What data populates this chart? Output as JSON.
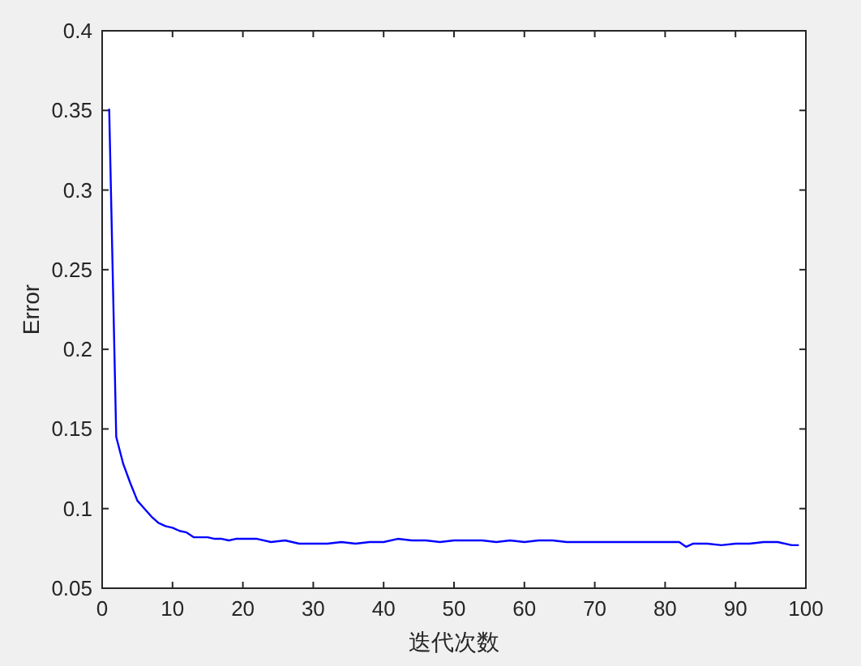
{
  "chart_data": {
    "type": "line",
    "xlabel": "迭代次数",
    "ylabel": "Error",
    "x": [
      1,
      2,
      3,
      4,
      5,
      6,
      7,
      8,
      9,
      10,
      11,
      12,
      13,
      14,
      15,
      16,
      17,
      18,
      19,
      20,
      22,
      24,
      26,
      28,
      30,
      32,
      34,
      36,
      38,
      40,
      42,
      44,
      46,
      48,
      50,
      52,
      54,
      56,
      58,
      60,
      62,
      64,
      66,
      68,
      70,
      72,
      74,
      76,
      78,
      80,
      82,
      83,
      84,
      86,
      88,
      90,
      92,
      94,
      96,
      98,
      99
    ],
    "series": [
      {
        "color": "#0000ff",
        "values": [
          0.351,
          0.145,
          0.128,
          0.116,
          0.105,
          0.1,
          0.095,
          0.091,
          0.089,
          0.088,
          0.086,
          0.085,
          0.082,
          0.082,
          0.082,
          0.081,
          0.081,
          0.08,
          0.081,
          0.081,
          0.081,
          0.079,
          0.08,
          0.078,
          0.078,
          0.078,
          0.079,
          0.078,
          0.079,
          0.079,
          0.081,
          0.08,
          0.08,
          0.079,
          0.08,
          0.08,
          0.08,
          0.079,
          0.08,
          0.079,
          0.08,
          0.08,
          0.079,
          0.079,
          0.079,
          0.079,
          0.079,
          0.079,
          0.079,
          0.079,
          0.079,
          0.076,
          0.078,
          0.078,
          0.077,
          0.078,
          0.078,
          0.079,
          0.079,
          0.077,
          0.077
        ]
      }
    ],
    "xlim": [
      0,
      100
    ],
    "ylim": [
      0.05,
      0.4
    ],
    "xticks": [
      0,
      10,
      20,
      30,
      40,
      50,
      60,
      70,
      80,
      90,
      100
    ],
    "yticks": [
      0.05,
      0.1,
      0.15,
      0.2,
      0.25,
      0.3,
      0.35,
      0.4
    ],
    "grid": false,
    "marker": "none",
    "line_style": "solid"
  }
}
